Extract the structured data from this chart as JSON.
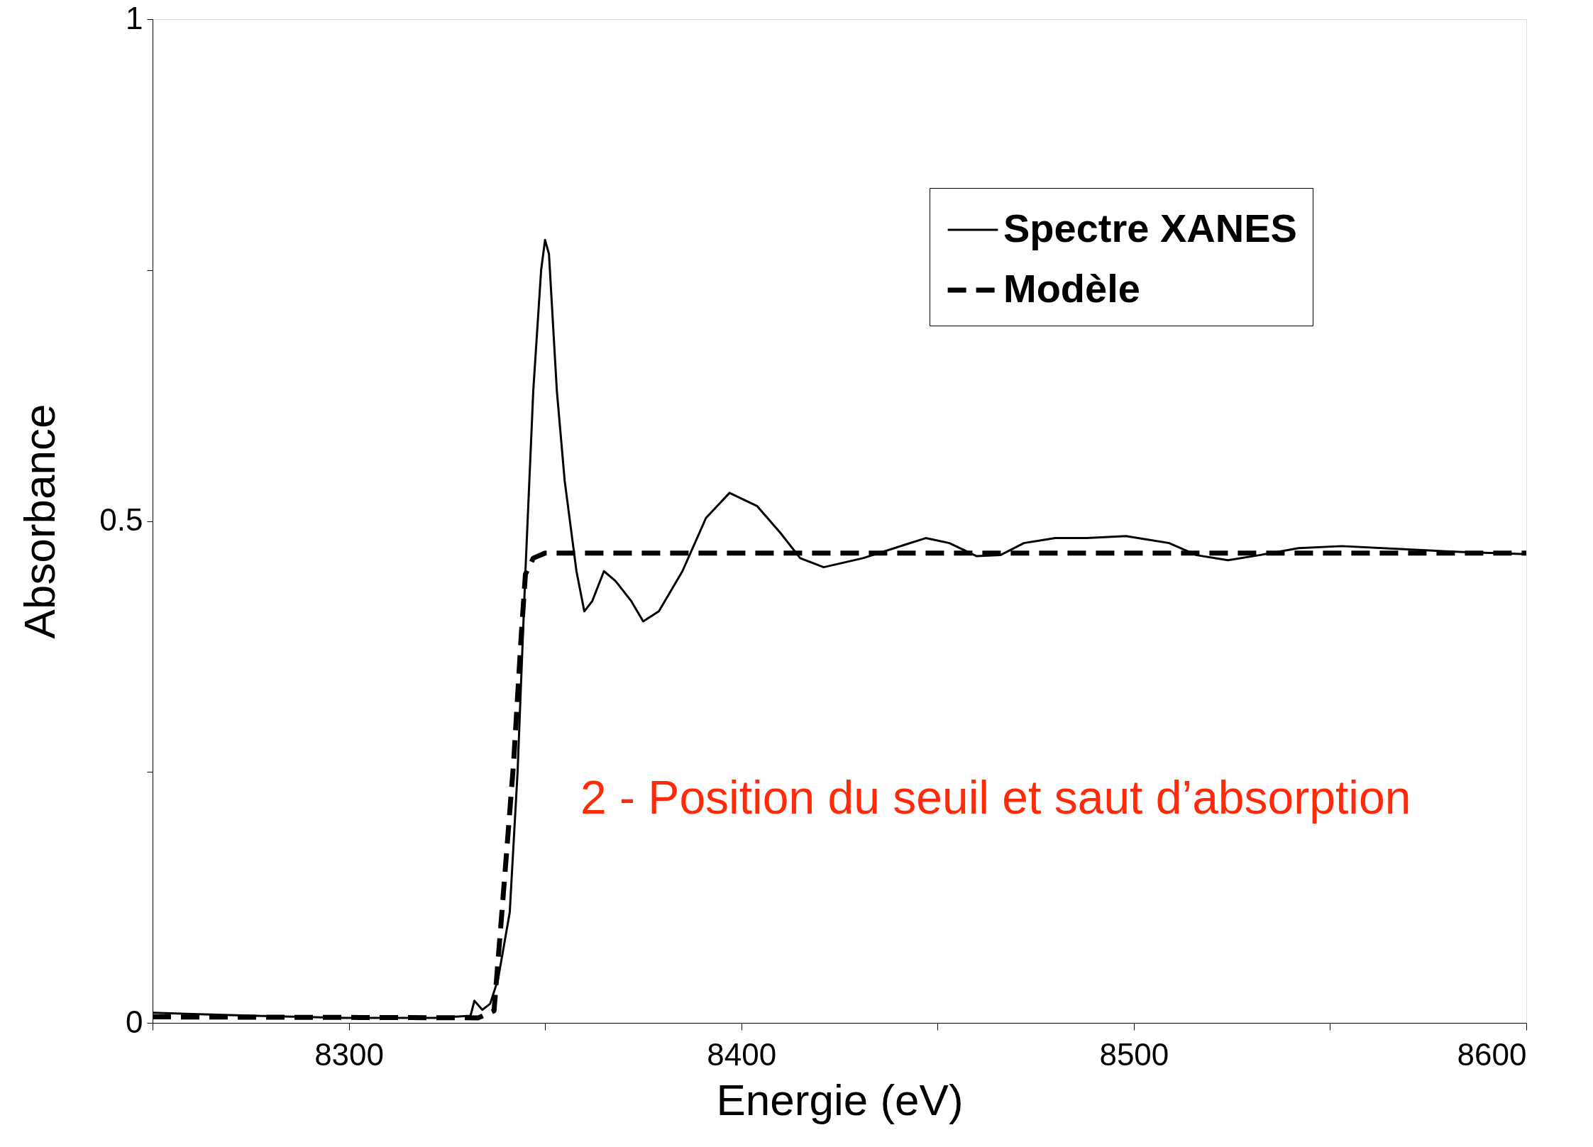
{
  "chart_data": {
    "type": "line",
    "xlabel": "Energie (eV)",
    "ylabel": "Absorbance",
    "xlim": [
      8250,
      8600
    ],
    "xticks": [
      {
        "value": 8250,
        "label": null
      },
      8300,
      {
        "value": 8350,
        "label": null
      },
      8400,
      {
        "value": 8450,
        "label": null
      },
      8500,
      {
        "value": 8550,
        "label": null
      },
      8600
    ],
    "ylim": [
      0,
      1
    ],
    "yticks": [
      0,
      {
        "value": 0.25,
        "label": null
      },
      0.5,
      {
        "value": 0.75,
        "label": null
      },
      1
    ],
    "grid": false,
    "legend": "top right",
    "marker": "none",
    "annotations": [
      "2 - Position du seuil et saut d’absorption"
    ],
    "series": [
      {
        "name": "Spectre XANES",
        "color": "#000000",
        "line_style": "solid",
        "x": [
          8250,
          8276,
          8299,
          8322,
          8331,
          8332,
          8334,
          8336,
          8338,
          8341,
          8343,
          8345,
          8347,
          8349,
          8350,
          8351,
          8353,
          8355,
          8358,
          8360,
          8362,
          8365,
          8368,
          8372,
          8375,
          8379,
          8385,
          8391,
          8397,
          8404,
          8410,
          8415,
          8421,
          8431,
          8439,
          8447,
          8453,
          8460,
          8466,
          8472,
          8480,
          8488,
          8498,
          8509,
          8516,
          8524,
          8532,
          8542,
          8553,
          8568,
          8584,
          8600
        ],
        "values": [
          0.01,
          0.007,
          0.005,
          0.005,
          0.007,
          0.022,
          0.013,
          0.019,
          0.043,
          0.11,
          0.25,
          0.45,
          0.63,
          0.75,
          0.78,
          0.766,
          0.63,
          0.54,
          0.45,
          0.41,
          0.42,
          0.45,
          0.44,
          0.42,
          0.4,
          0.41,
          0.45,
          0.503,
          0.528,
          0.515,
          0.488,
          0.463,
          0.454,
          0.463,
          0.473,
          0.483,
          0.478,
          0.465,
          0.466,
          0.478,
          0.483,
          0.483,
          0.485,
          0.478,
          0.466,
          0.461,
          0.466,
          0.473,
          0.475,
          0.472,
          0.469,
          0.467
        ]
      },
      {
        "name": "Modèle",
        "color": "#000000",
        "line_style": "dashed",
        "x": [
          8250,
          8333,
          8337,
          8339,
          8342,
          8344,
          8345,
          8347,
          8350,
          8600
        ],
        "values": [
          0.006,
          0.005,
          0.012,
          0.11,
          0.26,
          0.39,
          0.447,
          0.463,
          0.468,
          0.468
        ]
      }
    ]
  }
}
